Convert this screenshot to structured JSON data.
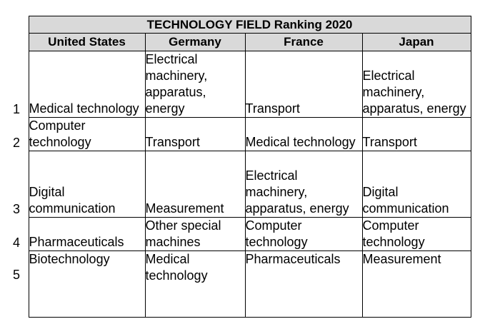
{
  "table": {
    "title": "TECHNOLOGY FIELD Ranking 2020",
    "columns": [
      "United States",
      "Germany",
      "France",
      "Japan"
    ],
    "rows": [
      {
        "rank": "1",
        "cells": [
          "Medical technology",
          "Electrical machinery, apparatus, energy",
          "Transport",
          "Electrical machinery, apparatus, energy"
        ]
      },
      {
        "rank": "2",
        "cells": [
          "Computer technology",
          "Transport",
          "Medical technology",
          "Transport"
        ]
      },
      {
        "rank": "3",
        "cells": [
          "Digital communication",
          "Measurement",
          "Electrical machinery, apparatus, energy",
          "Digital communication"
        ]
      },
      {
        "rank": "4",
        "cells": [
          "Pharmaceuticals",
          "Other special machines",
          "Computer technology",
          "Computer technology"
        ]
      },
      {
        "rank": "5",
        "cells": [
          "Biotechnology",
          "Medical technology",
          "Pharmaceuticals",
          "Measurement"
        ]
      }
    ]
  }
}
